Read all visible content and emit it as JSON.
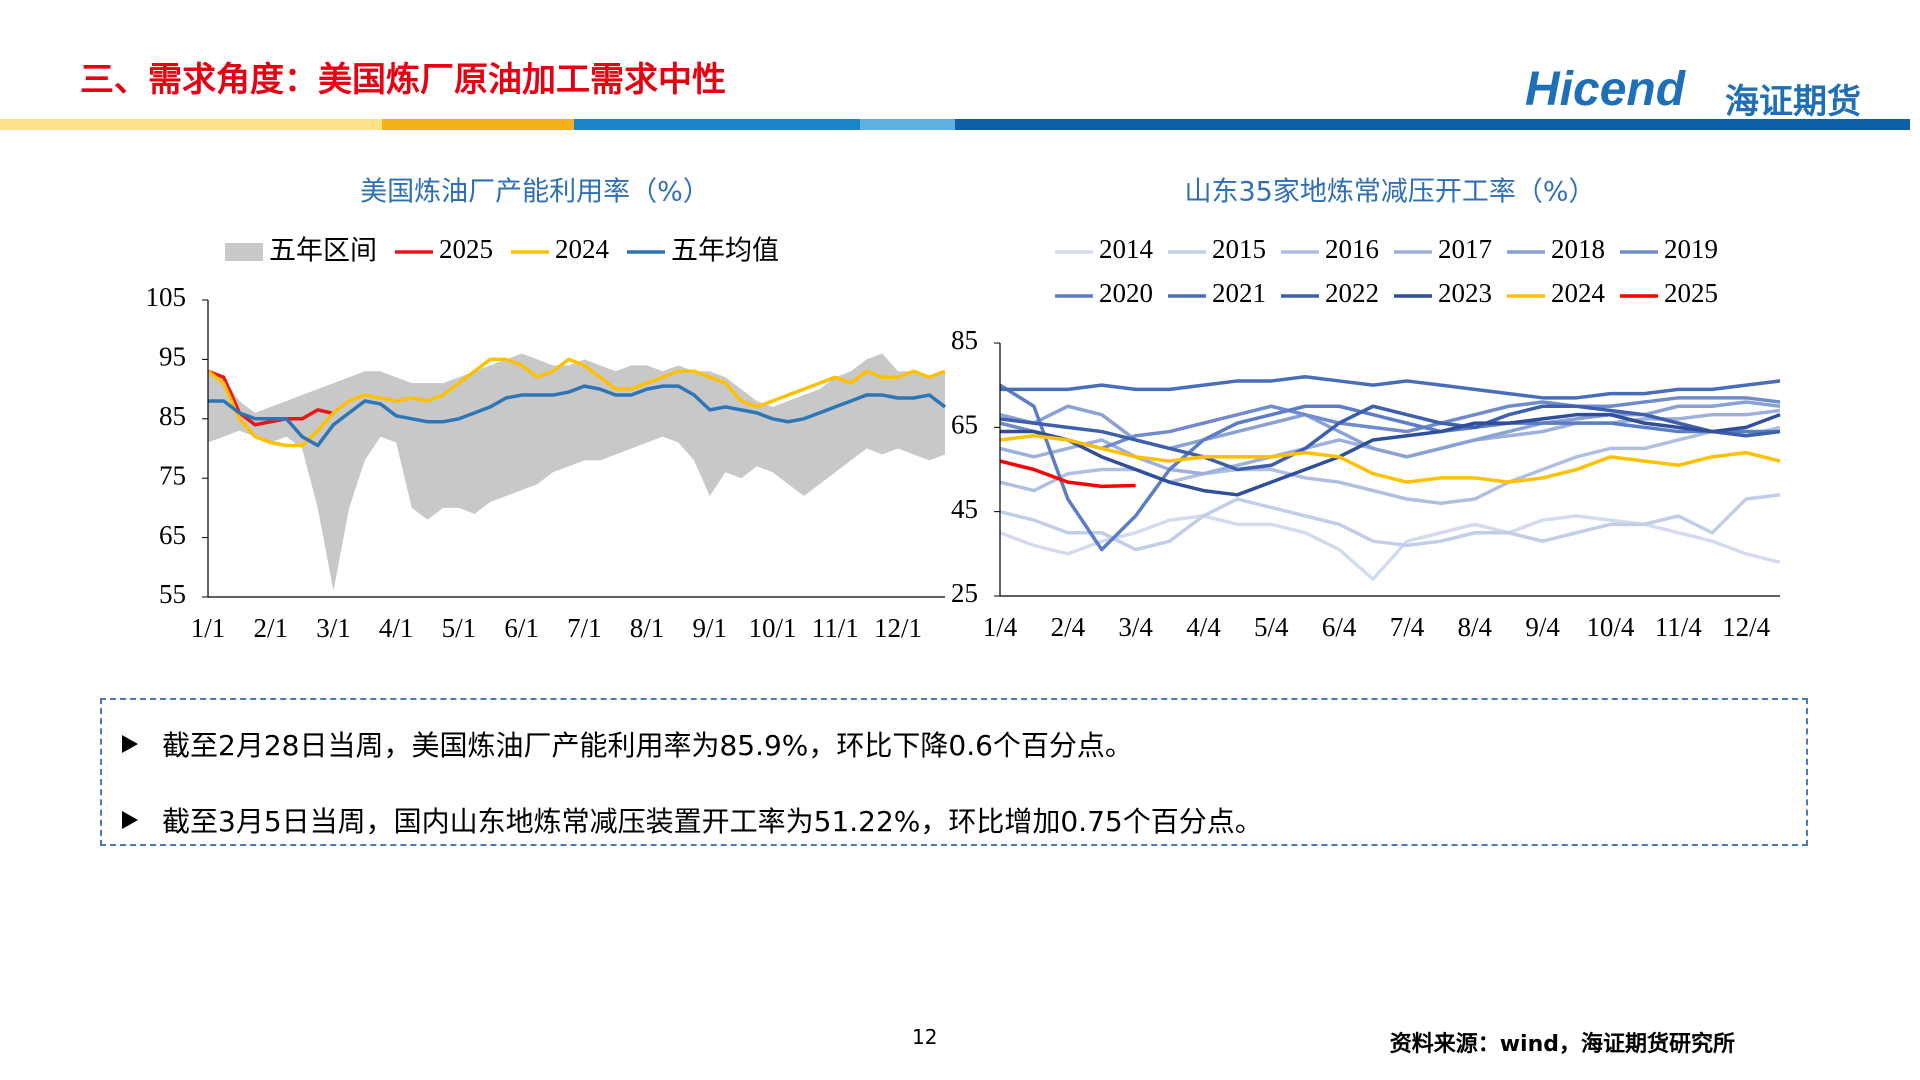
{
  "header": {
    "title": "三、需求角度：美国炼厂原油加工需求中性",
    "logo_text": "Hicend",
    "logo_cn": "海证期货"
  },
  "chart_data": [
    {
      "type": "line",
      "title": "美国炼油厂产能利用率（%）",
      "categories": [
        "1/1",
        null,
        null,
        null,
        "2/1",
        null,
        null,
        null,
        "3/1",
        null,
        null,
        null,
        "4/1",
        null,
        null,
        null,
        "5/1",
        null,
        null,
        null,
        "6/1",
        null,
        null,
        null,
        "7/1",
        null,
        null,
        null,
        "8/1",
        null,
        null,
        null,
        "9/1",
        null,
        null,
        null,
        "10/1",
        null,
        null,
        null,
        "11/1",
        null,
        null,
        null,
        "12/1",
        null,
        null,
        null
      ],
      "ylim": [
        55,
        105
      ],
      "yticks": [
        55,
        65,
        75,
        85,
        95,
        105
      ],
      "series": [
        {
          "name": "五年区间",
          "type": "band",
          "color": "#c8c8c8",
          "upper": [
            93,
            92,
            88,
            86,
            87,
            88,
            89,
            90,
            91,
            92,
            93,
            93,
            92,
            91,
            91,
            91,
            92,
            93,
            94,
            95,
            96,
            95,
            94,
            94,
            95,
            94,
            93,
            94,
            94,
            93,
            94,
            93,
            93,
            92,
            90,
            88,
            87,
            88,
            89,
            90,
            92,
            93,
            95,
            96,
            93,
            93,
            92,
            93
          ],
          "lower": [
            81,
            82,
            83,
            82,
            81,
            82,
            80,
            70,
            56,
            70,
            78,
            82,
            81,
            70,
            68,
            70,
            70,
            69,
            71,
            72,
            73,
            74,
            76,
            77,
            78,
            78,
            79,
            80,
            81,
            82,
            81,
            78,
            72,
            76,
            75,
            77,
            76,
            74,
            72,
            74,
            76,
            78,
            80,
            79,
            80,
            79,
            78,
            79
          ]
        },
        {
          "name": "2025",
          "color": "#e8161b",
          "values": [
            93,
            92,
            86,
            84,
            84.5,
            85,
            85,
            86.5,
            85.9,
            null,
            null,
            null,
            null,
            null,
            null,
            null,
            null,
            null,
            null,
            null,
            null,
            null,
            null,
            null,
            null,
            null,
            null,
            null,
            null,
            null,
            null,
            null,
            null,
            null,
            null,
            null,
            null,
            null,
            null,
            null,
            null,
            null,
            null,
            null,
            null,
            null,
            null,
            null
          ]
        },
        {
          "name": "2024",
          "color": "#ffc000",
          "values": [
            93,
            91,
            85,
            82,
            81,
            80.5,
            80.5,
            83,
            86,
            88,
            89,
            88.5,
            88,
            88.5,
            88,
            89,
            91,
            93,
            95,
            95,
            94,
            92,
            93,
            95,
            94,
            92,
            90,
            90,
            91,
            92,
            93,
            93,
            92,
            91,
            88,
            87,
            88,
            89,
            90,
            91,
            92,
            91,
            93,
            92,
            92,
            93,
            92,
            93
          ]
        },
        {
          "name": "五年均值",
          "color": "#2e75b6",
          "values": [
            88,
            88,
            86,
            85,
            85,
            85,
            82,
            80.5,
            84,
            86,
            88,
            87.5,
            85.5,
            85,
            84.5,
            84.5,
            85,
            86,
            87,
            88.5,
            89,
            89,
            89,
            89.5,
            90.5,
            90,
            89,
            89,
            90,
            90.5,
            90.5,
            89,
            86.5,
            87,
            86.5,
            86,
            85,
            84.5,
            85,
            86,
            87,
            88,
            89,
            89,
            88.5,
            88.5,
            89,
            87
          ]
        }
      ]
    },
    {
      "type": "line",
      "title": "山东35家地炼常减压开工率（%）",
      "categories": [
        "1/4",
        null,
        "2/4",
        null,
        "3/4",
        null,
        "4/4",
        null,
        "5/4",
        null,
        "6/4",
        null,
        "7/4",
        null,
        "8/4",
        null,
        "9/4",
        null,
        "10/4",
        null,
        "11/4",
        null,
        "12/4",
        null
      ],
      "ylim": [
        25,
        85
      ],
      "yticks": [
        25,
        45,
        65,
        85
      ],
      "series": [
        {
          "name": "2014",
          "color": "#d3dbee",
          "values": [
            40,
            37,
            35,
            38,
            40,
            43,
            44,
            42,
            42,
            40,
            36,
            29,
            38,
            40,
            42,
            40,
            43,
            44,
            43,
            42,
            40,
            38,
            35,
            33
          ]
        },
        {
          "name": "2015",
          "color": "#c2cde8",
          "values": [
            45,
            43,
            40,
            40,
            36,
            38,
            44,
            48,
            46,
            44,
            42,
            38,
            37,
            38,
            40,
            40,
            38,
            40,
            42,
            42,
            44,
            40,
            48,
            49
          ]
        },
        {
          "name": "2016",
          "color": "#b0bfe1",
          "values": [
            52,
            50,
            54,
            55,
            55,
            52,
            54,
            55,
            55,
            53,
            52,
            50,
            48,
            47,
            48,
            52,
            55,
            58,
            60,
            60,
            62,
            64,
            63,
            65
          ]
        },
        {
          "name": "2017",
          "color": "#9db0db",
          "values": [
            60,
            58,
            60,
            62,
            58,
            55,
            54,
            56,
            58,
            60,
            62,
            60,
            58,
            60,
            62,
            63,
            64,
            66,
            66,
            67,
            67,
            68,
            68,
            69
          ]
        },
        {
          "name": "2018",
          "color": "#8aa1d4",
          "values": [
            68,
            66,
            70,
            68,
            62,
            60,
            62,
            64,
            66,
            68,
            64,
            60,
            58,
            60,
            62,
            64,
            66,
            67,
            68,
            68,
            70,
            70,
            71,
            70
          ]
        },
        {
          "name": "2019",
          "color": "#6f8bcb",
          "values": [
            66,
            64,
            62,
            60,
            63,
            64,
            66,
            68,
            70,
            68,
            66,
            65,
            64,
            66,
            68,
            70,
            71,
            70,
            70,
            71,
            72,
            72,
            72,
            71
          ]
        },
        {
          "name": "2020",
          "color": "#5b7dc5",
          "values": [
            75,
            70,
            48,
            36,
            44,
            55,
            62,
            66,
            68,
            70,
            70,
            68,
            66,
            64,
            65,
            66,
            66,
            66,
            66,
            65,
            64,
            64,
            64,
            64
          ]
        },
        {
          "name": "2021",
          "color": "#4a6dba",
          "values": [
            74,
            74,
            74,
            75,
            74,
            74,
            75,
            76,
            76,
            77,
            76,
            75,
            76,
            75,
            74,
            73,
            72,
            72,
            73,
            73,
            74,
            74,
            75,
            76
          ]
        },
        {
          "name": "2022",
          "color": "#3d5fae",
          "values": [
            67,
            66,
            65,
            64,
            62,
            60,
            58,
            55,
            56,
            60,
            66,
            70,
            68,
            66,
            65,
            68,
            70,
            70,
            69,
            68,
            66,
            64,
            63,
            64
          ]
        },
        {
          "name": "2023",
          "color": "#2f4f9a",
          "values": [
            64,
            64,
            62,
            58,
            55,
            52,
            50,
            49,
            52,
            55,
            58,
            62,
            63,
            64,
            66,
            66,
            67,
            68,
            68,
            66,
            65,
            64,
            65,
            68
          ]
        },
        {
          "name": "2024",
          "color": "#ffc000",
          "values": [
            62,
            63,
            62,
            60,
            58,
            57,
            58,
            58,
            58,
            59,
            58,
            54,
            52,
            53,
            53,
            52,
            53,
            55,
            58,
            57,
            56,
            58,
            59,
            57
          ]
        },
        {
          "name": "2025",
          "color": "#ff0000",
          "values": [
            57,
            55,
            52,
            51,
            51.22,
            null,
            null,
            null,
            null,
            null,
            null,
            null,
            null,
            null,
            null,
            null,
            null,
            null,
            null,
            null,
            null,
            null,
            null,
            null
          ]
        }
      ]
    }
  ],
  "notes": [
    "截至2月28日当周，美国炼油厂产能利用率为85.9%，环比下降0.6个百分点。",
    "截至3月5日当周，国内山东地炼常减压装置开工率为51.22%，环比增加0.75个百分点。"
  ],
  "footer": {
    "page": "12",
    "source": "资料来源：wind，海证期货研究所"
  }
}
